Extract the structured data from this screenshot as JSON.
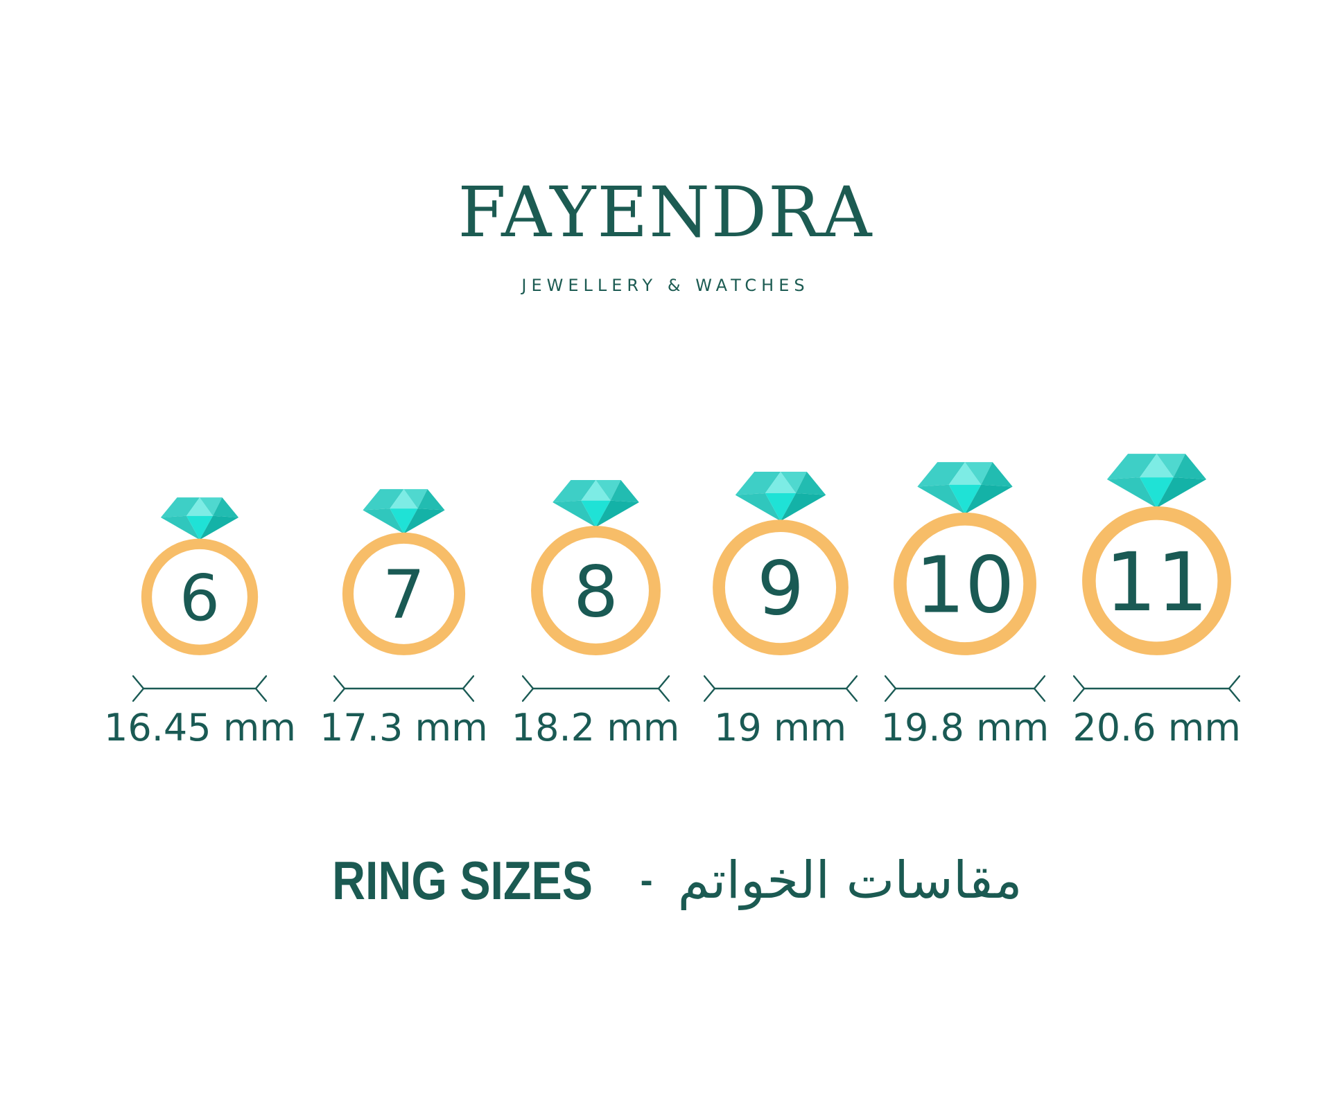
{
  "brand": {
    "name": "FAYENDRA",
    "tagline": "JEWELLERY & WATCHES"
  },
  "rings": [
    {
      "size": "6",
      "diameter": "16.45 mm"
    },
    {
      "size": "7",
      "diameter": "17.3 mm"
    },
    {
      "size": "8",
      "diameter": "18.2 mm"
    },
    {
      "size": "9",
      "diameter": "19 mm"
    },
    {
      "size": "10",
      "diameter": "19.8 mm"
    },
    {
      "size": "11",
      "diameter": "20.6 mm"
    }
  ],
  "footer": {
    "title_en": "RING SIZES",
    "separator": "-",
    "title_ar": "مقاسات الخواتم"
  },
  "colors": {
    "text": "#1a5a54",
    "logo": "#1c5b52",
    "band": "#f7bd68",
    "diamond": {
      "crown_left": "#3ecfc6",
      "crown_center": "#7dece5",
      "crown_right": "#4fd8cf",
      "crown_far_right": "#22bcb1",
      "pavilion_left": "#30c7bd",
      "pavilion_center": "#1fe2d6",
      "pavilion_right": "#14b2a7"
    }
  }
}
